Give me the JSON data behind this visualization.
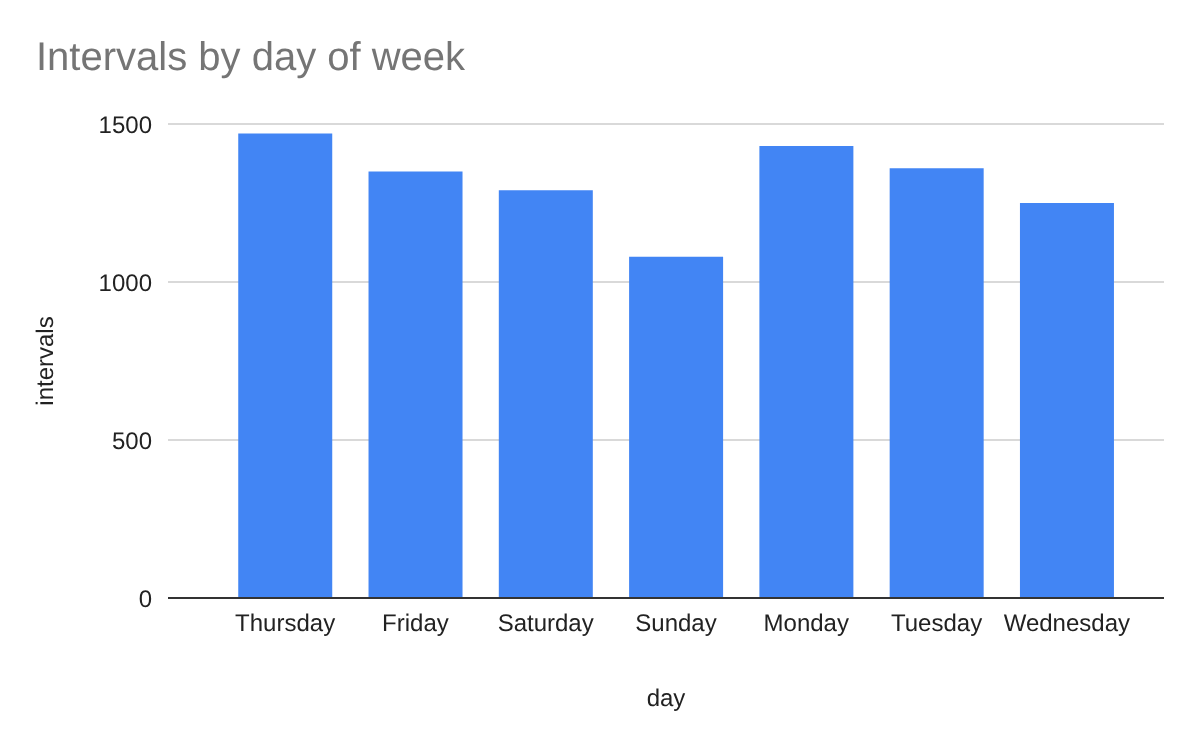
{
  "chart_data": {
    "type": "bar",
    "title": "Intervals by day of week",
    "xlabel": "day",
    "ylabel": "intervals",
    "categories": [
      "Thursday",
      "Friday",
      "Saturday",
      "Sunday",
      "Monday",
      "Tuesday",
      "Wednesday"
    ],
    "values": [
      1470,
      1350,
      1290,
      1080,
      1430,
      1360,
      1250
    ],
    "color": "#4285f4",
    "ylim": [
      0,
      1500
    ],
    "yticks": [
      0,
      500,
      1000,
      1500
    ],
    "grid": "y"
  }
}
